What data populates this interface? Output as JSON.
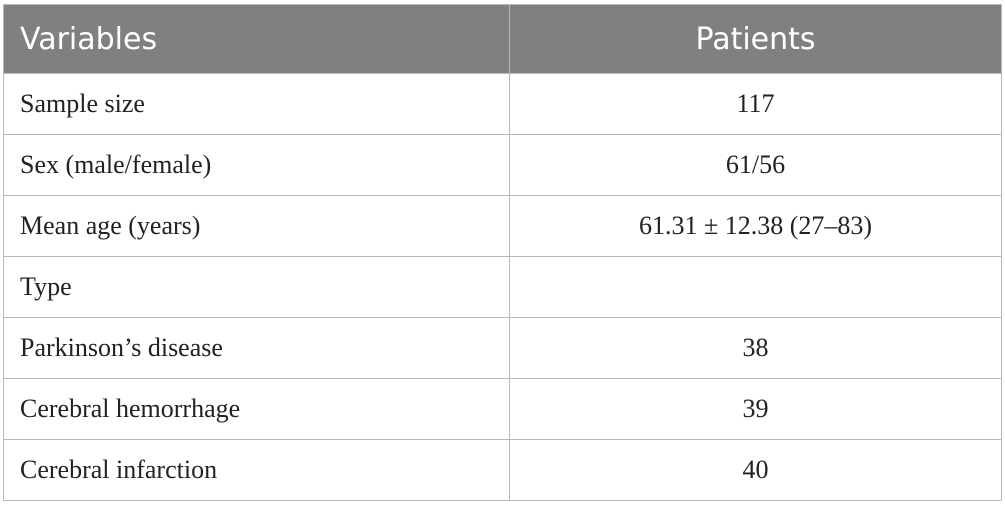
{
  "table": {
    "columns": [
      "Variables",
      "Patients"
    ],
    "rows": [
      [
        "Sample size",
        "117"
      ],
      [
        "Sex (male/female)",
        "61/56"
      ],
      [
        "Mean age (years)",
        "61.31 ± 12.38 (27–83)"
      ],
      [
        "Type"
      ],
      [
        "Parkinson’s disease",
        "38"
      ],
      [
        "Cerebral hemorrhage",
        "39"
      ],
      [
        "Cerebral infarction",
        "40"
      ]
    ]
  }
}
